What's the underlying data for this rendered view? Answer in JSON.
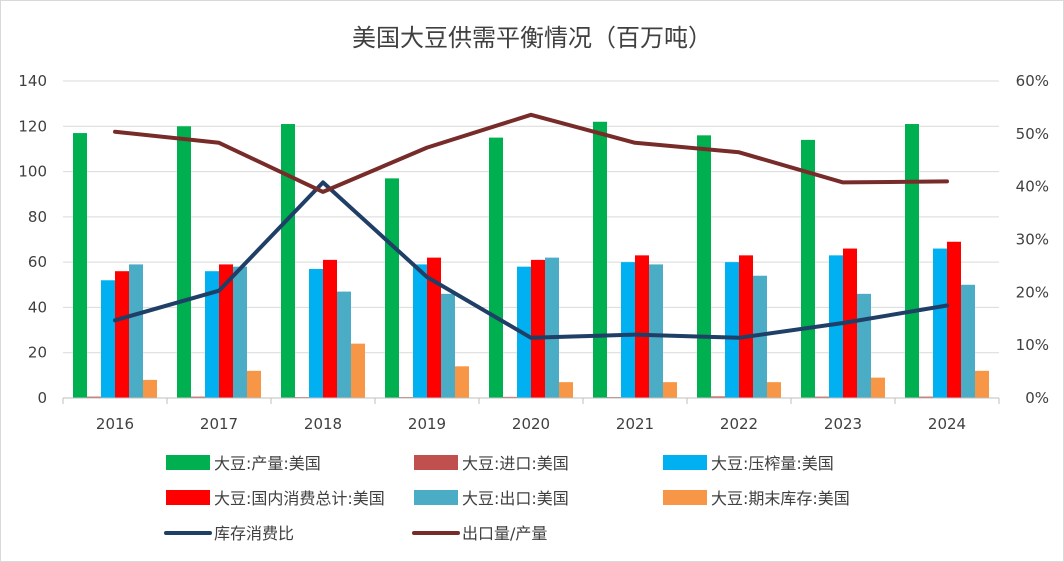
{
  "chart_data": {
    "type": "bar",
    "title": "美国大豆供需平衡情况（百万吨）",
    "categories": [
      "2016",
      "2017",
      "2018",
      "2019",
      "2020",
      "2021",
      "2022",
      "2023",
      "2024"
    ],
    "y_left": {
      "lim": [
        0,
        140
      ],
      "ticks": [
        "0",
        "20",
        "40",
        "60",
        "80",
        "100",
        "120",
        "140"
      ]
    },
    "y_right": {
      "lim": [
        0,
        0.6
      ],
      "ticks": [
        "0%",
        "10%",
        "20%",
        "30%",
        "40%",
        "50%",
        "60%"
      ]
    },
    "grid": true,
    "legend_position": "bottom",
    "bar_series": [
      {
        "name": "大豆:产量:美国",
        "color": "#00b050",
        "values": [
          117,
          120,
          121,
          97,
          115,
          122,
          116,
          114,
          121
        ]
      },
      {
        "name": "大豆:进口:美国",
        "color": "#c0504d",
        "values": [
          0.6,
          0.6,
          0.4,
          0.4,
          0.5,
          0.4,
          0.7,
          0.6,
          0.6
        ]
      },
      {
        "name": "大豆:压榨量:美国",
        "color": "#00b0f0",
        "values": [
          52,
          56,
          57,
          59,
          58,
          60,
          60,
          63,
          66
        ]
      },
      {
        "name": "大豆:国内消费总计:美国",
        "color": "#ff0000",
        "values": [
          56,
          59,
          61,
          62,
          61,
          63,
          63,
          66,
          69
        ]
      },
      {
        "name": "大豆:出口:美国",
        "color": "#4bacc6",
        "values": [
          59,
          58,
          47,
          46,
          62,
          59,
          54,
          46,
          50
        ]
      },
      {
        "name": "大豆:期末库存:美国",
        "color": "#f79646",
        "values": [
          8,
          12,
          24,
          14,
          7,
          7,
          7,
          9,
          12
        ]
      }
    ],
    "line_series": [
      {
        "name": "库存消费比",
        "color": "#1f3f66",
        "axis": "right",
        "values": [
          0.147,
          0.203,
          0.408,
          0.229,
          0.114,
          0.12,
          0.114,
          0.142,
          0.175
        ]
      },
      {
        "name": "出口量/产量",
        "color": "#772c2a",
        "axis": "right",
        "values": [
          0.504,
          0.483,
          0.39,
          0.474,
          0.536,
          0.483,
          0.465,
          0.408,
          0.41
        ]
      }
    ]
  }
}
